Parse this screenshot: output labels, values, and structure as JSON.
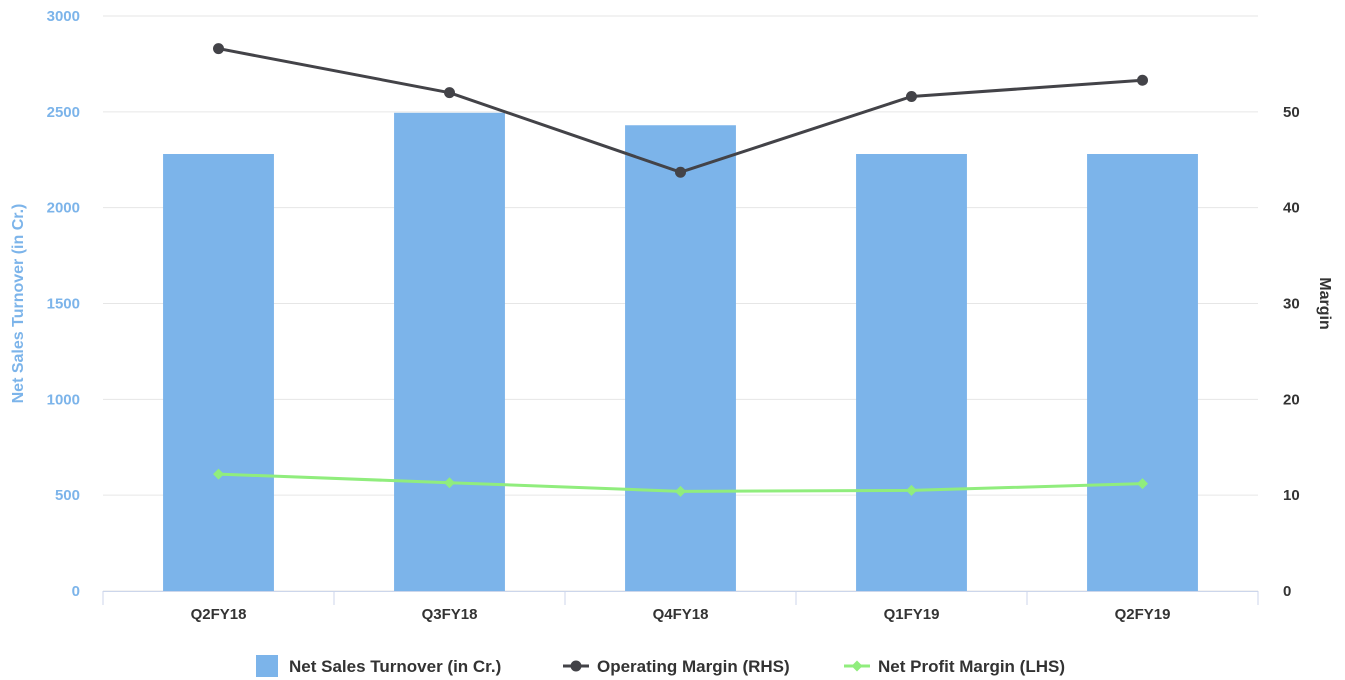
{
  "chart_data": {
    "type": "bar",
    "categories": [
      "Q2FY18",
      "Q3FY18",
      "Q4FY18",
      "Q1FY19",
      "Q2FY19"
    ],
    "series": [
      {
        "name": "Net Sales Turnover (in Cr.)",
        "kind": "bar",
        "axis": "left",
        "color": "#7cb4ea",
        "values": [
          2280,
          2495,
          2430,
          2280,
          2280
        ]
      },
      {
        "name": "Operating Margin (RHS)",
        "kind": "line",
        "axis": "right",
        "color": "#434348",
        "values": [
          56.6,
          52.0,
          43.7,
          51.6,
          53.3
        ]
      },
      {
        "name": "Net Profit Margin (LHS)",
        "kind": "line",
        "axis": "right",
        "color": "#90ed7d",
        "values": [
          12.2,
          11.3,
          10.4,
          10.5,
          11.2
        ]
      }
    ],
    "ylabel": "Net Sales Turnover (in Cr.)",
    "ylabel_right": "Margin",
    "ylim": [
      0,
      3000
    ],
    "ylim_right": [
      0,
      60
    ],
    "yticks": [
      0,
      500,
      1000,
      1500,
      2000,
      2500,
      3000
    ],
    "yticks_right": [
      0,
      10,
      20,
      30,
      40,
      50
    ],
    "grid": true,
    "legend_position": "bottom-center",
    "colors": {
      "left_axis": "#7cb4ea",
      "right_axis": "#333333",
      "grid": "#e6e6e6"
    }
  }
}
